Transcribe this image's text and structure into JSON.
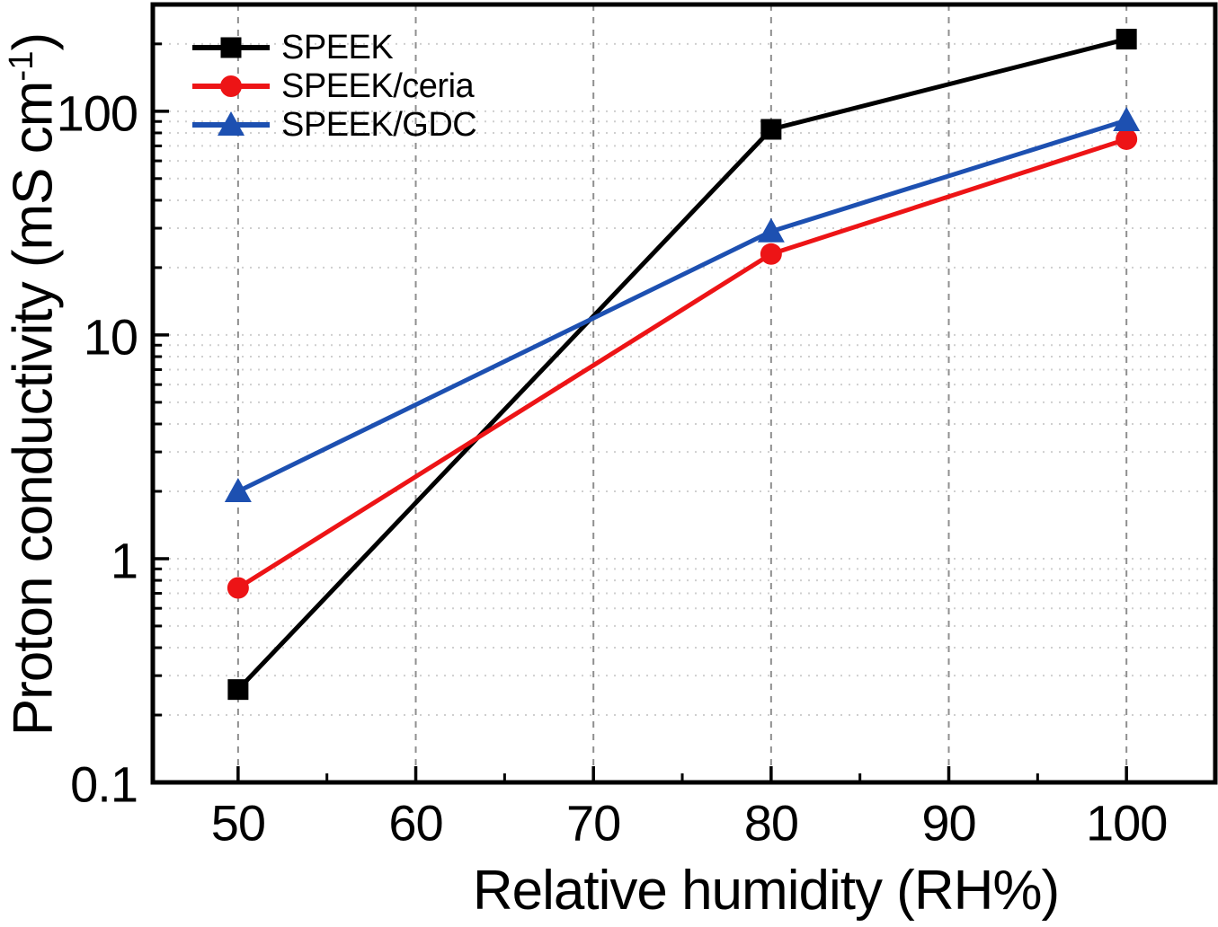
{
  "chart_data": {
    "type": "line",
    "title": "",
    "xlabel": "Relative humidity (RH%)",
    "ylabel": "Proton conductivity (mS cm⁻¹)",
    "ylabel_parts": {
      "main": "Proton conductivity (mS cm",
      "sup": "-1",
      "close": ")"
    },
    "x_axis": {
      "scale": "linear",
      "min": 45.2,
      "max": 105,
      "major_ticks": [
        50,
        60,
        70,
        80,
        90,
        100
      ],
      "tick_labels": [
        "50",
        "60",
        "70",
        "80",
        "90",
        "100"
      ],
      "minor_ticks": [
        55,
        65,
        75,
        85,
        95
      ]
    },
    "y_axis": {
      "scale": "log",
      "min": 0.1,
      "max": 300,
      "major_ticks": [
        0.1,
        1,
        10,
        100
      ],
      "tick_labels": [
        "0.1",
        "1",
        "10",
        "100"
      ],
      "minor_ticks_per_decade": [
        2,
        3,
        4,
        5,
        6,
        7,
        8,
        9
      ]
    },
    "grid": {
      "vertical_style": "dashed",
      "vertical_color": "#8f8f8f",
      "horizontal_style": "dotted",
      "horizontal_color": "#cfcfcf"
    },
    "legend_position": "top-left",
    "series": [
      {
        "name": "SPEEK",
        "color": "#000000",
        "marker": "square",
        "x": [
          50,
          80,
          100
        ],
        "y": [
          0.26,
          83,
          210
        ]
      },
      {
        "name": "SPEEK/ceria",
        "color": "#ed1416",
        "marker": "circle",
        "x": [
          50,
          80,
          100
        ],
        "y": [
          0.74,
          23,
          75
        ]
      },
      {
        "name": "SPEEK/GDC",
        "color": "#1d50b1",
        "marker": "triangle",
        "x": [
          50,
          80,
          100
        ],
        "y": [
          2.0,
          29,
          91
        ]
      }
    ]
  }
}
